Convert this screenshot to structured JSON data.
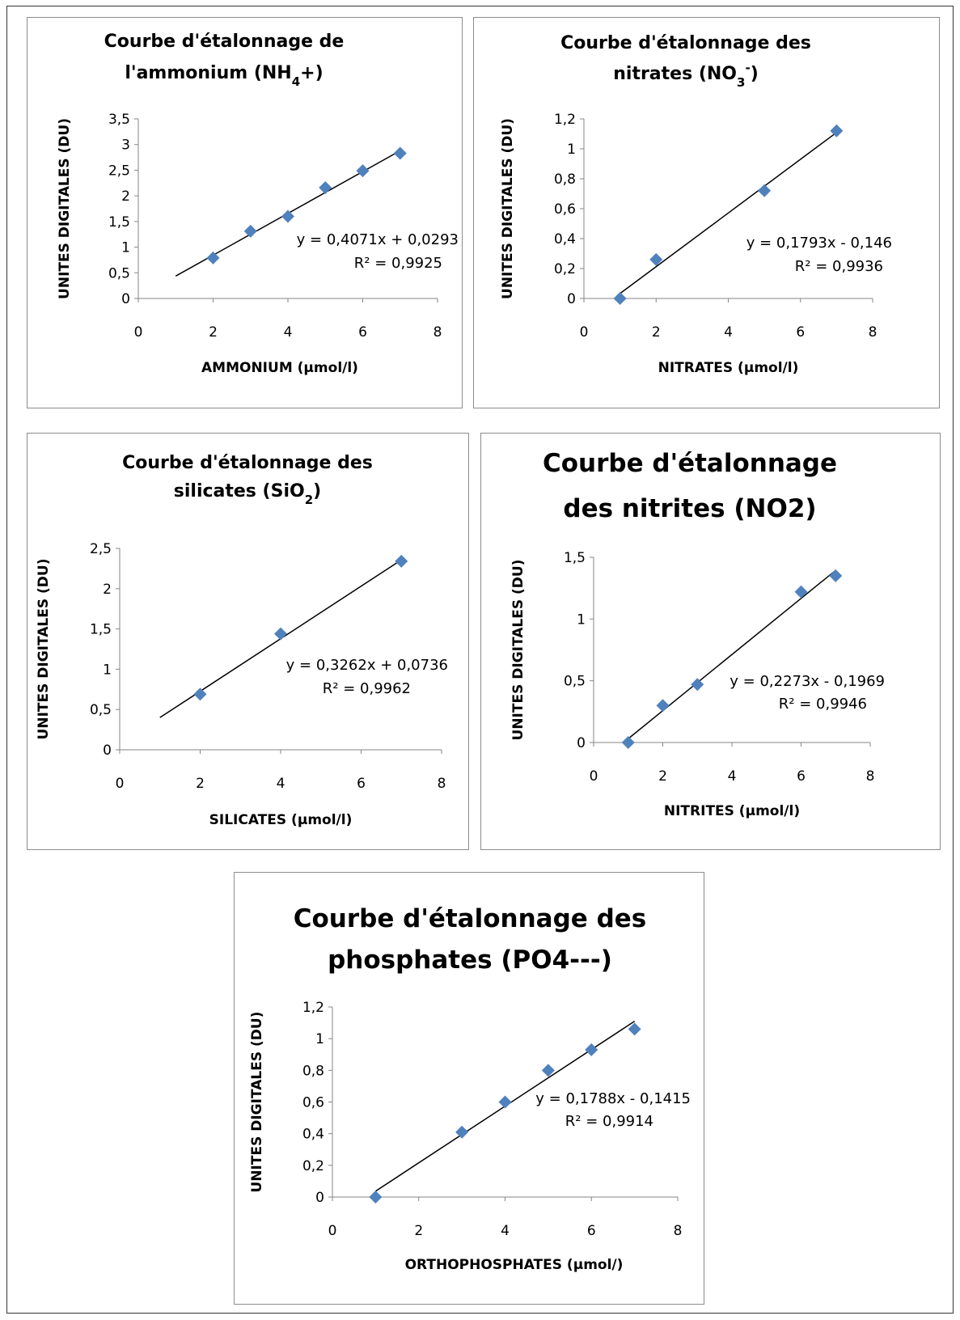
{
  "colors": {
    "marker": "#4f81bd",
    "axis": "#868686",
    "trendline": "#000000"
  },
  "chart_data": [
    {
      "type": "scatter",
      "title_lines": [
        [
          "Courbe d'étalonnage de"
        ],
        [
          "l'ammonium (NH",
          {
            "sub": "4"
          },
          "+)"
        ]
      ],
      "xlabel": "AMMONIUM (µmol/l)",
      "ylabel": "UNITES DIGITALES (DU)",
      "x": [
        2,
        3,
        4,
        5,
        6,
        7
      ],
      "y": [
        0.79,
        1.31,
        1.6,
        2.16,
        2.49,
        2.83
      ],
      "xlim": [
        0,
        8
      ],
      "ylim": [
        0,
        3.5
      ],
      "xticks": [
        "0",
        "2",
        "4",
        "6",
        "8"
      ],
      "yticks": [
        "0",
        "0,5",
        "1",
        "1,5",
        "2",
        "2,5",
        "3",
        "3,5"
      ],
      "trendline": {
        "slope": 0.4071,
        "intercept": 0.0293,
        "x_range": [
          1,
          7
        ]
      },
      "equation": "y = 0,4071x + 0,0293",
      "r2": "R² = 0,9925",
      "marker": "diamond",
      "grid": false
    },
    {
      "type": "scatter",
      "title_lines": [
        [
          "Courbe d'étalonnage des"
        ],
        [
          "nitrates (NO",
          {
            "sub": "3"
          },
          {
            "sup": "-"
          },
          ")"
        ]
      ],
      "xlabel": "NITRATES (µmol/l)",
      "ylabel": "UNITES  DIGITALES (DU)",
      "x": [
        1,
        2,
        5,
        7
      ],
      "y": [
        0,
        0.26,
        0.72,
        1.12
      ],
      "xlim": [
        0,
        8
      ],
      "ylim": [
        0,
        1.2
      ],
      "xticks": [
        "0",
        "2",
        "4",
        "6",
        "8"
      ],
      "yticks": [
        "0",
        "0,2",
        "0,4",
        "0,6",
        "0,8",
        "1",
        "1,2"
      ],
      "trendline": {
        "slope": 0.1793,
        "intercept": -0.146,
        "x_range": [
          1,
          7
        ]
      },
      "equation": "y = 0,1793x - 0,146",
      "r2": "R² = 0,9936",
      "marker": "diamond",
      "grid": false
    },
    {
      "type": "scatter",
      "title_lines": [
        [
          "Courbe d'étalonnage des"
        ],
        [
          "silicates (SiO",
          {
            "sub": "2"
          },
          ")"
        ]
      ],
      "xlabel": "SILICATES (µmol/l)",
      "ylabel": "UNITES DIGITALES (DU)",
      "x": [
        2,
        4,
        7
      ],
      "y": [
        0.69,
        1.44,
        2.34
      ],
      "xlim": [
        0,
        8
      ],
      "ylim": [
        0,
        2.5
      ],
      "xticks": [
        "0",
        "2",
        "4",
        "6",
        "8"
      ],
      "yticks": [
        "0",
        "0,5",
        "1",
        "1,5",
        "2",
        "2,5"
      ],
      "trendline": {
        "slope": 0.3262,
        "intercept": 0.0736,
        "x_range": [
          1,
          7
        ]
      },
      "equation": "y = 0,3262x + 0,0736",
      "r2": "R² = 0,9962",
      "marker": "diamond",
      "grid": false
    },
    {
      "type": "scatter",
      "title_lines": [
        [
          "Courbe d'étalonnage"
        ],
        [
          "des nitrites (NO2)"
        ]
      ],
      "xlabel": "NITRITES (µmol/l)",
      "ylabel": "UNITES DIGITALES (DU)",
      "x": [
        1,
        2,
        3,
        6,
        7
      ],
      "y": [
        0,
        0.3,
        0.47,
        1.22,
        1.35
      ],
      "xlim": [
        0,
        8
      ],
      "ylim": [
        0,
        1.5
      ],
      "xticks": [
        "0",
        "2",
        "4",
        "6",
        "8"
      ],
      "yticks": [
        "0",
        "0,5",
        "1",
        "1,5"
      ],
      "trendline": {
        "slope": 0.2273,
        "intercept": -0.1969,
        "x_range": [
          1,
          7
        ]
      },
      "equation": "y = 0,2273x - 0,1969",
      "r2": "R² = 0,9946",
      "marker": "diamond",
      "grid": false
    },
    {
      "type": "scatter",
      "title_lines": [
        [
          "Courbe d'étalonnage des"
        ],
        [
          "phosphates (PO4---)"
        ]
      ],
      "xlabel": "ORTHOPHOSPHATES (µmol/)",
      "ylabel": "UNITES DIGITALES (DU)",
      "x": [
        1,
        3,
        4,
        5,
        6,
        7
      ],
      "y": [
        0,
        0.41,
        0.6,
        0.8,
        0.93,
        1.06
      ],
      "xlim": [
        0,
        8
      ],
      "ylim": [
        0,
        1.2
      ],
      "xticks": [
        "0",
        "2",
        "4",
        "6",
        "8"
      ],
      "yticks": [
        "0",
        "0,2",
        "0,4",
        "0,6",
        "0,8",
        "1",
        "1,2"
      ],
      "trendline": {
        "slope": 0.1788,
        "intercept": -0.1415,
        "x_range": [
          1,
          7
        ]
      },
      "equation": "y = 0,1788x - 0,1415",
      "r2": "R² = 0,9914",
      "marker": "diamond",
      "grid": false
    }
  ]
}
